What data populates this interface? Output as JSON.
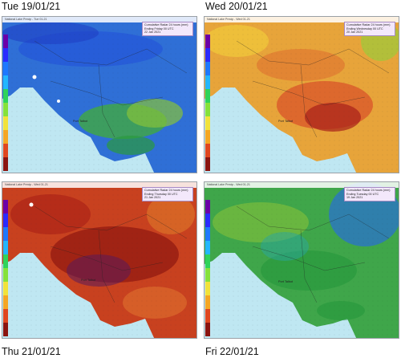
{
  "labels": {
    "top_left": "Tue 19/01/21",
    "top_right": "Wed 20/01/21",
    "bottom_left": "Thu 21/01/21",
    "bottom_right": "Fri 22/01/21"
  },
  "panels": [
    {
      "header": "National Lake Precip - Tue 01-21",
      "info_line1": "Cumulative Radar 24 hours (mm)",
      "info_line2": "Ending Friday 00 UTC",
      "info_line3": "22 Jan 2021",
      "place": "Port Talbot",
      "palette": "wet_low",
      "background": "#2f6fd6"
    },
    {
      "header": "National Lake Precip - Wed 01-21",
      "info_line1": "Cumulative Radar 24 hours (mm)",
      "info_line2": "Ending Wednesday 00 UTC",
      "info_line3": "20 Jan 2021",
      "place": "Port Talbot",
      "palette": "heavy",
      "background": "#e7a43a"
    },
    {
      "header": "National Lake Precip - Wed 01-21",
      "info_line1": "Cumulative Radar 24 hours (mm)",
      "info_line2": "Ending Thursday 00 UTC",
      "info_line3": "21 Jan 2021",
      "place": "Port Talbot",
      "palette": "extreme",
      "background": "#c8411f"
    },
    {
      "header": "National Lake Precip - Wed 01-21",
      "info_line1": "Cumulative Radar 24 hours (mm)",
      "info_line2": "Ending Tuesday 00 UTC",
      "info_line3": "19 Jan 2021",
      "place": "Port Talbot",
      "palette": "moderate",
      "background": "#3fa64a"
    }
  ],
  "scale_colors": [
    "#6b00a8",
    "#2a2aff",
    "#1e78ff",
    "#23b6ff",
    "#2fd35a",
    "#86e13a",
    "#f2e23a",
    "#f5a623",
    "#e0461f",
    "#8b1410"
  ],
  "sea_color": "#bfe7f2"
}
